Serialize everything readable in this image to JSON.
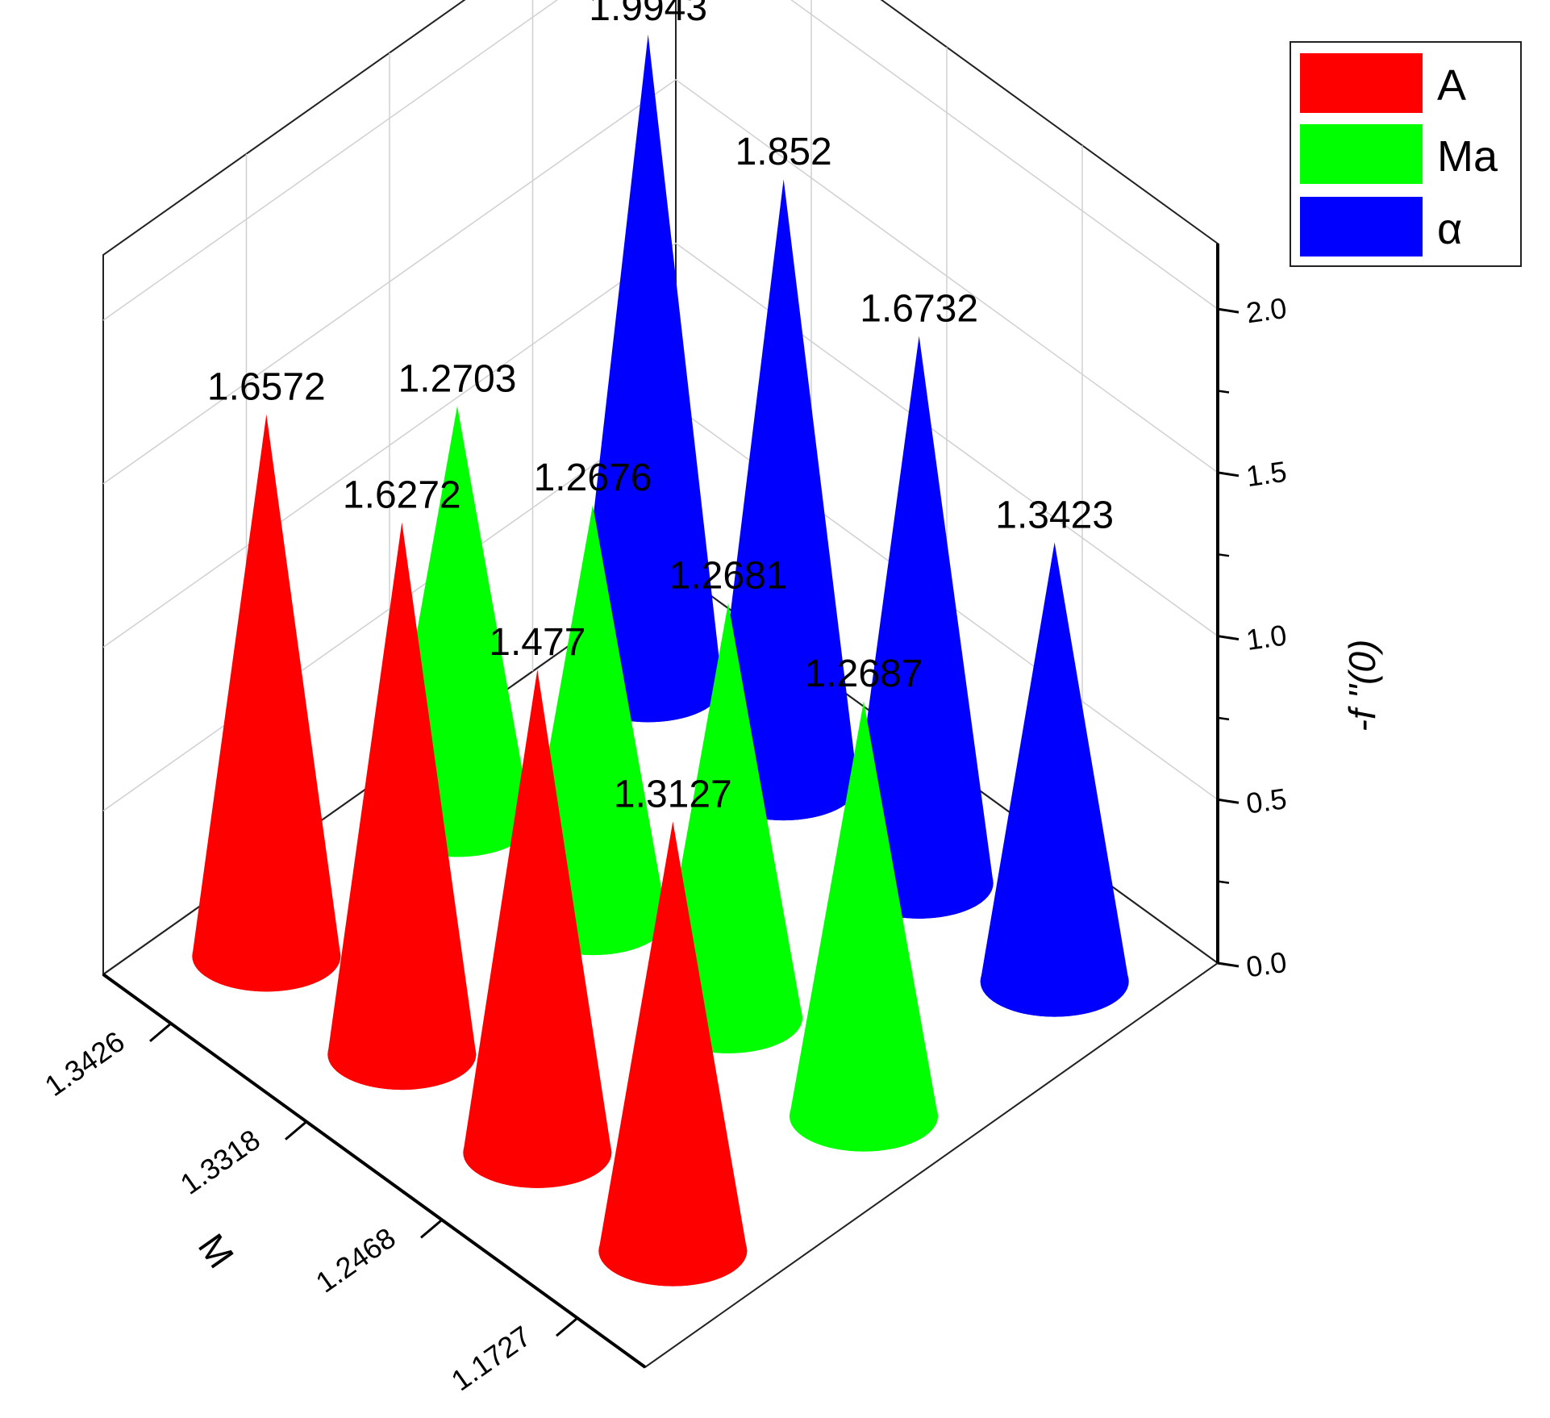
{
  "chart_data": {
    "type": "bar",
    "style": "3d-cone",
    "series": [
      {
        "name": "A",
        "color": "#ff0000",
        "values": [
          1.6572,
          1.6272,
          1.477,
          1.3127
        ]
      },
      {
        "name": "Ma",
        "color": "#00ff00",
        "values": [
          1.2703,
          1.2676,
          1.2681,
          1.2687
        ]
      },
      {
        "name": "α",
        "color": "#0000ff",
        "values": [
          1.9943,
          1.852,
          1.6732,
          1.3423
        ]
      }
    ],
    "categories": [
      "1.3426",
      "1.3318",
      "1.2468",
      "1.1727"
    ],
    "xlabel": "M",
    "zlabel": "-f ''(0)",
    "zlim": [
      0,
      2.2
    ],
    "zticks": [
      "0.0",
      "0.5",
      "1.0",
      "1.5",
      "2.0"
    ],
    "grid": true,
    "legend_position": "top-right"
  }
}
